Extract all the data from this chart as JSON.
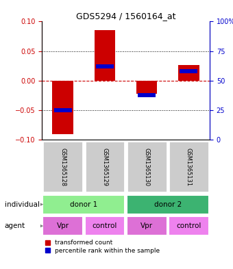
{
  "title": "GDS5294 / 1560164_at",
  "categories": [
    "GSM1365128",
    "GSM1365129",
    "GSM1365130",
    "GSM1365131"
  ],
  "red_values": [
    -0.09,
    0.085,
    -0.022,
    0.027
  ],
  "blue_values_pct": [
    25,
    62,
    38,
    58
  ],
  "ylim_left": [
    -0.1,
    0.1
  ],
  "ylim_right": [
    0,
    100
  ],
  "yticks_left": [
    -0.1,
    -0.05,
    0,
    0.05,
    0.1
  ],
  "yticks_right": [
    0,
    25,
    50,
    75,
    100
  ],
  "donor1_color": "#90EE90",
  "donor2_color": "#3CB371",
  "vpr_color": "#DD70D6",
  "control_color": "#EE82EE",
  "sample_box_color": "#CCCCCC",
  "agent_labels": [
    "Vpr",
    "control",
    "Vpr",
    "control"
  ],
  "red_color": "#CC0000",
  "blue_color": "#0000CC",
  "bar_width": 0.5
}
